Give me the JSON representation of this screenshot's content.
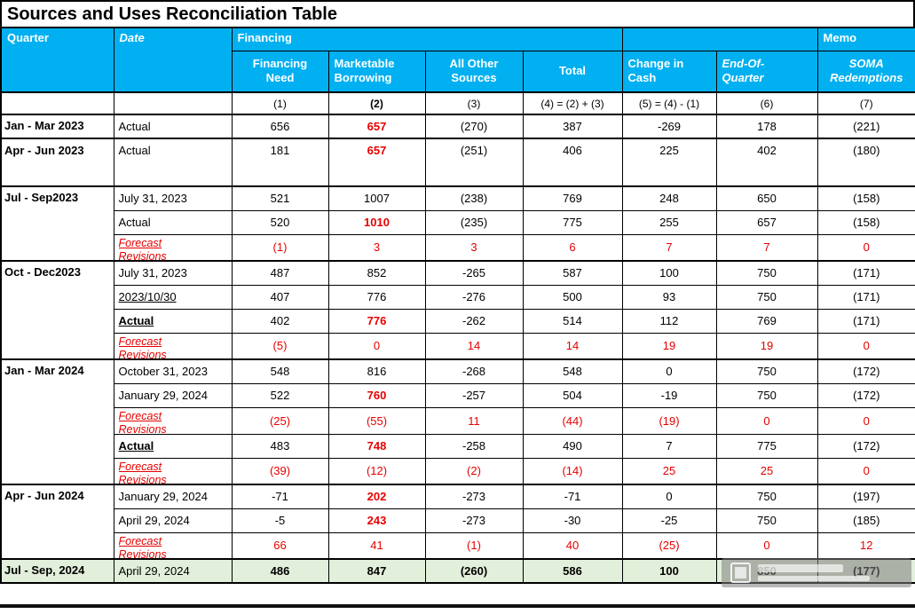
{
  "chart_data": {
    "type": "table",
    "title": "Sources and Uses Reconciliation Table",
    "header": {
      "quarter": "Quarter",
      "date": "Date",
      "financing_group": "Financing",
      "memo_group": "Memo",
      "columns": [
        "Financing\nNeed",
        "Marketable\nBorrowing",
        "All Other\nSources",
        "Total",
        "Change in\nCash",
        "End-Of-\nQuarter",
        "SOMA\nRedemptions"
      ],
      "formula_row": [
        "(1)",
        "(2)",
        "(3)",
        "(4) = (2) + (3)",
        "(5) = (4) - (1)",
        "(6)",
        "(7)"
      ]
    },
    "rows": [
      {
        "quarter": "Jan - Mar 2023",
        "qspan": 1,
        "date": "Actual",
        "values": [
          "656",
          "657",
          "(270)",
          "387",
          "-269",
          "178",
          "(221)"
        ],
        "red_cols": [
          1
        ],
        "group_start": true
      },
      {
        "quarter": "Apr - Jun 2023",
        "qspan": 1,
        "date": "Actual",
        "values": [
          "181",
          "657",
          "(251)",
          "406",
          "225",
          "402",
          "(180)"
        ],
        "red_cols": [
          1
        ],
        "group_start": true,
        "tall": true
      },
      {
        "quarter": "Jul - Sep2023",
        "qspan": 3,
        "date": "July 31, 2023",
        "values": [
          "521",
          "1007",
          "(238)",
          "769",
          "248",
          "650",
          "(158)"
        ],
        "group_start": true
      },
      {
        "date": "Actual",
        "values": [
          "520",
          "1010",
          "(235)",
          "775",
          "255",
          "657",
          "(158)"
        ],
        "red_cols": [
          1
        ]
      },
      {
        "date": "Forecast Revisions",
        "date_style": "forecast",
        "values": [
          "(1)",
          "3",
          "3",
          "6",
          "7",
          "7",
          "0"
        ],
        "all_red": true
      },
      {
        "quarter": "Oct - Dec2023",
        "qspan": 4,
        "date": "July 31, 2023",
        "values": [
          "487",
          "852",
          "-265",
          "587",
          "100",
          "750",
          "(171)"
        ],
        "group_start": true
      },
      {
        "date": "2023/10/30",
        "date_style": "underline",
        "values": [
          "407",
          "776",
          "-276",
          "500",
          "93",
          "750",
          "(171)"
        ]
      },
      {
        "date": "Actual",
        "date_style": "bold-underline",
        "values": [
          "402",
          "776",
          "-262",
          "514",
          "112",
          "769",
          "(171)"
        ],
        "red_cols": [
          1
        ]
      },
      {
        "date": "Forecast Revisions",
        "date_style": "forecast",
        "values": [
          "(5)",
          "0",
          "14",
          "14",
          "19",
          "19",
          "0"
        ],
        "all_red": true
      },
      {
        "quarter": "Jan - Mar 2024",
        "qspan": 5,
        "date": "October 31, 2023",
        "values": [
          "548",
          "816",
          "-268",
          "548",
          "0",
          "750",
          "(172)"
        ],
        "group_start": true
      },
      {
        "date": "January 29, 2024",
        "values": [
          "522",
          "760",
          "-257",
          "504",
          "-19",
          "750",
          "(172)"
        ],
        "red_cols": [
          1
        ]
      },
      {
        "date": "Forecast Revisions",
        "date_style": "forecast",
        "values": [
          "(25)",
          "(55)",
          "11",
          "(44)",
          "(19)",
          "0",
          "0"
        ],
        "all_red": true
      },
      {
        "date": "Actual",
        "date_style": "bold-underline",
        "values": [
          "483",
          "748",
          "-258",
          "490",
          "7",
          "775",
          "(172)"
        ],
        "red_cols": [
          1
        ]
      },
      {
        "date": "Forecast Revisions",
        "date_style": "forecast",
        "values": [
          "(39)",
          "(12)",
          "(2)",
          "(14)",
          "25",
          "25",
          "0"
        ],
        "all_red": true
      },
      {
        "quarter": "Apr - Jun 2024",
        "qspan": 3,
        "date": "January 29, 2024",
        "values": [
          "-71",
          "202",
          "-273",
          "-71",
          "0",
          "750",
          "(197)"
        ],
        "red_cols": [
          1
        ],
        "group_start": true
      },
      {
        "date": "April 29, 2024",
        "values": [
          "-5",
          "243",
          "-273",
          "-30",
          "-25",
          "750",
          "(185)"
        ],
        "red_cols": [
          1
        ]
      },
      {
        "date": "Forecast Revisions",
        "date_style": "forecast",
        "values": [
          "66",
          "41",
          "(1)",
          "40",
          "(25)",
          "0",
          "12"
        ],
        "all_red": true
      },
      {
        "quarter": "Jul - Sep, 2024",
        "qspan": 1,
        "date": "April 29, 2024",
        "values": [
          "486",
          "847",
          "(260)",
          "586",
          "100",
          "850",
          "(177)"
        ],
        "group_start": true,
        "green": true
      }
    ]
  },
  "colors": {
    "header_bg": "#00b0f0",
    "header_text": "#ffffff",
    "red": "#e60000",
    "green_bg": "#e2efda",
    "border": "#000000"
  }
}
